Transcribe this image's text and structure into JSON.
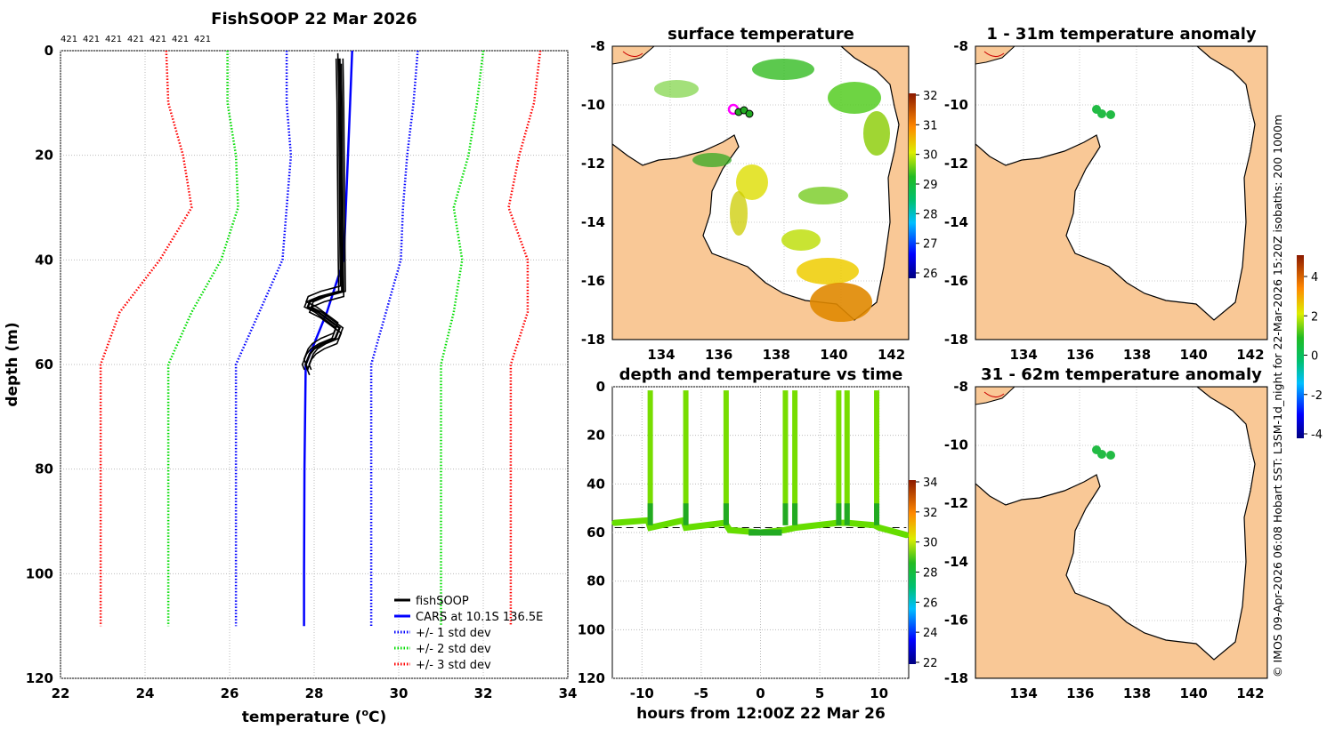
{
  "profile": {
    "title": "FishSOOP 22 Mar 2026",
    "top_labels": [
      "421",
      "421",
      "421",
      "421",
      "421",
      "421",
      "421"
    ],
    "xlabel_main": "temperature (",
    "xlabel_sup": "o",
    "xlabel_end": "C)",
    "ylabel": "depth (m)",
    "xlim": [
      22,
      34
    ],
    "ylim": [
      0,
      120
    ],
    "xticks": [
      22,
      24,
      26,
      28,
      30,
      32,
      34
    ],
    "yticks": [
      0,
      20,
      40,
      60,
      80,
      100,
      120
    ],
    "legend": [
      {
        "label": "fishSOOP",
        "color": "#000000",
        "style": "solid"
      },
      {
        "label": "CARS at 10.1S 136.5E",
        "color": "#0000ff",
        "style": "solid"
      },
      {
        "label": "+/- 1 std dev",
        "color": "#0000ff",
        "style": "dotted"
      },
      {
        "label": "+/- 2 std dev",
        "color": "#00dd00",
        "style": "dotted"
      },
      {
        "label": "+/- 3 std dev",
        "color": "#ff0000",
        "style": "dotted"
      }
    ]
  },
  "chart_data": [
    {
      "type": "line",
      "title": "FishSOOP 22 Mar 2026",
      "xlabel": "temperature (oC)",
      "ylabel": "depth (m)",
      "xlim": [
        22,
        34
      ],
      "ylim": [
        0,
        120
      ],
      "y_inverted": true,
      "grid": true,
      "series": [
        {
          "name": "CARS at 10.1S 136.5E",
          "color": "#0000ff",
          "points": [
            [
              28.9,
              0
            ],
            [
              28.85,
              10
            ],
            [
              28.8,
              20
            ],
            [
              28.75,
              30
            ],
            [
              28.7,
              40
            ],
            [
              28.3,
              50
            ],
            [
              27.8,
              60
            ],
            [
              27.77,
              80
            ],
            [
              27.76,
              100
            ],
            [
              27.76,
              110
            ]
          ]
        },
        {
          "name": "CARS -1 std dev",
          "color": "#0000ff",
          "dotted": true,
          "points": [
            [
              27.35,
              0
            ],
            [
              27.35,
              10
            ],
            [
              27.45,
              20
            ],
            [
              27.35,
              30
            ],
            [
              27.25,
              40
            ],
            [
              26.7,
              50
            ],
            [
              26.15,
              60
            ],
            [
              26.15,
              80
            ],
            [
              26.15,
              100
            ],
            [
              26.15,
              110
            ]
          ]
        },
        {
          "name": "CARS +1 std dev",
          "color": "#0000ff",
          "dotted": true,
          "points": [
            [
              30.45,
              0
            ],
            [
              30.35,
              10
            ],
            [
              30.2,
              20
            ],
            [
              30.1,
              30
            ],
            [
              30.05,
              40
            ],
            [
              29.7,
              50
            ],
            [
              29.35,
              60
            ],
            [
              29.35,
              80
            ],
            [
              29.35,
              100
            ],
            [
              29.35,
              110
            ]
          ]
        },
        {
          "name": "CARS -2 std dev",
          "color": "#00dd00",
          "dotted": true,
          "points": [
            [
              25.95,
              0
            ],
            [
              25.95,
              10
            ],
            [
              26.15,
              20
            ],
            [
              26.2,
              30
            ],
            [
              25.8,
              40
            ],
            [
              25.1,
              50
            ],
            [
              24.55,
              60
            ],
            [
              24.55,
              80
            ],
            [
              24.55,
              100
            ],
            [
              24.55,
              110
            ]
          ]
        },
        {
          "name": "CARS +2 std dev",
          "color": "#00dd00",
          "dotted": true,
          "points": [
            [
              32.0,
              0
            ],
            [
              31.85,
              10
            ],
            [
              31.65,
              20
            ],
            [
              31.3,
              30
            ],
            [
              31.5,
              40
            ],
            [
              31.3,
              50
            ],
            [
              31.0,
              60
            ],
            [
              31.0,
              80
            ],
            [
              31.0,
              100
            ],
            [
              31.0,
              110
            ]
          ]
        },
        {
          "name": "CARS -3 std dev",
          "color": "#ff0000",
          "dotted": true,
          "points": [
            [
              24.5,
              0
            ],
            [
              24.55,
              10
            ],
            [
              24.9,
              20
            ],
            [
              25.1,
              30
            ],
            [
              24.35,
              40
            ],
            [
              23.4,
              50
            ],
            [
              22.95,
              60
            ],
            [
              22.95,
              80
            ],
            [
              22.95,
              100
            ],
            [
              22.95,
              110
            ]
          ]
        },
        {
          "name": "CARS +3 std dev",
          "color": "#ff0000",
          "dotted": true,
          "points": [
            [
              33.35,
              0
            ],
            [
              33.2,
              10
            ],
            [
              32.85,
              20
            ],
            [
              32.6,
              30
            ],
            [
              33.05,
              40
            ],
            [
              33.05,
              50
            ],
            [
              32.65,
              60
            ],
            [
              32.65,
              80
            ],
            [
              32.65,
              100
            ],
            [
              32.65,
              110
            ]
          ]
        },
        {
          "name": "fishSOOP",
          "color": "#000000",
          "points": [
            [
              28.6,
              1.5
            ],
            [
              28.62,
              10
            ],
            [
              28.63,
              20
            ],
            [
              28.64,
              30
            ],
            [
              28.65,
              40
            ],
            [
              28.66,
              46
            ],
            [
              28.2,
              47
            ],
            [
              27.9,
              48
            ],
            [
              27.85,
              49
            ],
            [
              28.1,
              50
            ],
            [
              28.6,
              53
            ],
            [
              28.5,
              55
            ],
            [
              28.2,
              56
            ],
            [
              28.0,
              57
            ],
            [
              27.9,
              58
            ],
            [
              27.8,
              60
            ],
            [
              27.85,
              61
            ]
          ]
        }
      ]
    },
    {
      "type": "heatmap",
      "title": "surface temperature",
      "xlim": [
        132.5,
        142.8
      ],
      "ylim": [
        -18,
        -8
      ],
      "xticks": [
        134,
        136,
        138,
        140,
        142
      ],
      "yticks": [
        -8,
        -10,
        -12,
        -14,
        -16,
        -18
      ],
      "colorbar": {
        "min": 26,
        "max": 32,
        "ticks": [
          32,
          31,
          30,
          29,
          28,
          27,
          26
        ]
      },
      "marker": {
        "lon": 136.5,
        "lat": -10.1
      }
    },
    {
      "type": "scatter",
      "title": "depth and temperature vs time",
      "xlabel": "hours from 12:00Z 22 Mar 26",
      "xlim": [
        -12.5,
        12.5
      ],
      "ylim": [
        0,
        120
      ],
      "y_inverted": true,
      "xticks": [
        -10,
        -5,
        0,
        5,
        10
      ],
      "yticks": [
        0,
        20,
        40,
        60,
        80,
        100,
        120
      ],
      "colorbar": {
        "min": 22,
        "max": 34,
        "ticks": [
          34,
          32,
          30,
          28,
          26,
          24,
          22
        ]
      },
      "casts_hours": [
        -9.3,
        -6.3,
        -2.9,
        2.1,
        2.9,
        6.6,
        7.3,
        9.8
      ],
      "bottom_depth_m": 58
    },
    {
      "type": "heatmap",
      "title": "1 - 31m temperature anomaly",
      "xlim": [
        132.5,
        142.8
      ],
      "ylim": [
        -18,
        -8
      ],
      "xticks": [
        134,
        136,
        138,
        140,
        142
      ],
      "yticks": [
        -8,
        -10,
        -12,
        -14,
        -16,
        -18
      ],
      "colorbar": {
        "min": -4,
        "max": 5,
        "ticks": [
          4,
          2,
          0,
          -2,
          -4
        ]
      }
    },
    {
      "type": "heatmap",
      "title": "31 - 62m temperature anomaly",
      "xlim": [
        132.5,
        142.8
      ],
      "ylim": [
        -18,
        -8
      ],
      "xticks": [
        134,
        136,
        138,
        140,
        142
      ],
      "yticks": [
        -8,
        -10,
        -12,
        -14,
        -16,
        -18
      ]
    }
  ],
  "maps": {
    "sst_title": "surface temperature",
    "anom1_title": "1 - 31m temperature anomaly",
    "anom2_title": "31 - 62m temperature anomaly",
    "lon_ticks": [
      "134",
      "136",
      "138",
      "140",
      "142"
    ],
    "lat_ticks": [
      "-8",
      "-10",
      "-12",
      "-14",
      "-16",
      "-18"
    ],
    "sst_cbar_ticks": [
      "32",
      "31",
      "30",
      "29",
      "28",
      "27",
      "26"
    ],
    "anom_cbar_ticks": [
      "4",
      "2",
      "0",
      "-2",
      "-4"
    ],
    "land_color": "#f9c896"
  },
  "timeseries": {
    "title": "depth and temperature vs time",
    "xlabel": "hours from 12:00Z 22 Mar 26",
    "xticks": [
      "-10",
      "-5",
      "0",
      "5",
      "10"
    ],
    "yticks": [
      "0",
      "20",
      "40",
      "60",
      "80",
      "100",
      "120"
    ],
    "cbar_ticks": [
      "34",
      "32",
      "30",
      "28",
      "26",
      "24",
      "22"
    ]
  },
  "credit": "© IMOS 09-Apr-2026 06:08 Hobart SST: L3SM-1d_night for 22-Mar-2026 15:20Z isobaths: 200  1000m"
}
